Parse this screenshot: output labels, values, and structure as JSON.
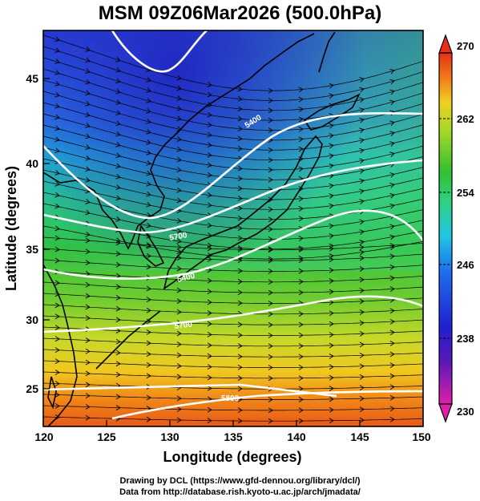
{
  "title": "MSM 09Z06Mar2026 (500.0hPa)",
  "xlabel": "Longitude (degrees)",
  "ylabel": "Latitude  (degrees)",
  "x_ticks": [
    "120",
    "125",
    "130",
    "135",
    "140",
    "145",
    "150"
  ],
  "y_ticks": [
    "25",
    "30",
    "35",
    "40",
    "45"
  ],
  "colorbar_ticks": [
    "230",
    "238",
    "246",
    "254",
    "262",
    "270"
  ],
  "contour_labels": [
    "5400",
    "5700",
    "5400",
    "5700",
    "5400",
    "5800"
  ],
  "credit_line1": "Drawing by DCL (https://www.gfd-dennou.org/library/dcl/)",
  "credit_line2": "Data from http://database.rish.kyoto-u.ac.jp/arch/jmadata/",
  "colors": {
    "min": "#e020a8",
    "blue": "#2020d0",
    "cyan": "#20b8e0",
    "green": "#30c030",
    "yellow": "#f0d020",
    "orange": "#f07a18",
    "max": "#e83018"
  },
  "map_data": {
    "lon_range": [
      120,
      150
    ],
    "lat_range": [
      22.7,
      48
    ],
    "color_range": [
      230,
      270
    ],
    "fill_field": "temperature (K)",
    "overlay": "streamlines and geopotential height contours"
  }
}
